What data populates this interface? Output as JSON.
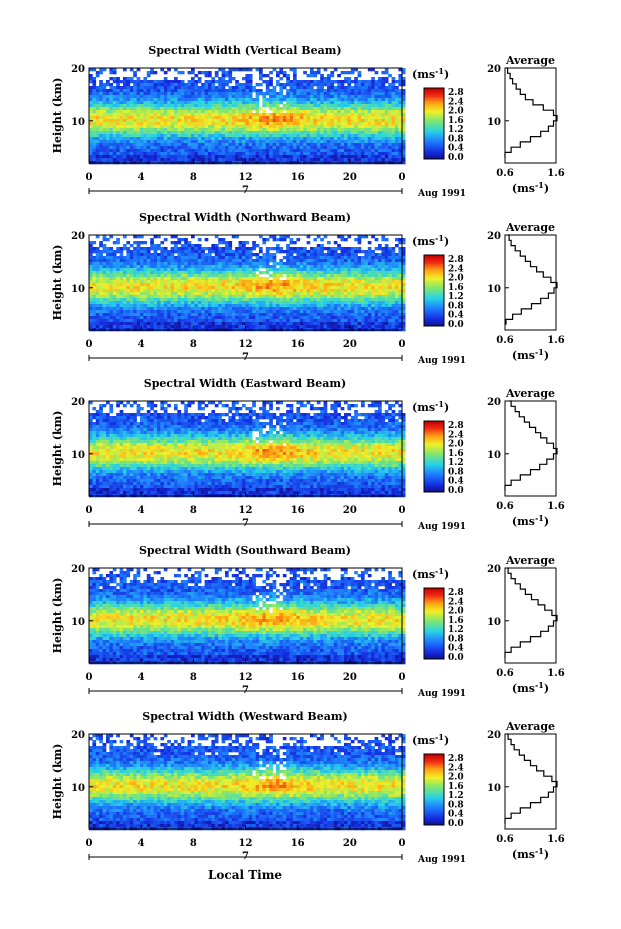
{
  "figure": {
    "x_axis_label": "Local Time",
    "colorbar_unit": "(ms",
    "colorbar_unit_exp": "-1",
    "colorbar_ticks": [
      "2.8",
      "2.4",
      "2.0",
      "1.6",
      "1.2",
      "0.8",
      "0.4",
      "0.0"
    ],
    "profile_title": "Average",
    "profile_unit": "(ms",
    "profile_unit_exp": "-1",
    "date_label": "Aug 1991",
    "day_marker": "7",
    "y_axis_label": "Height (km)"
  },
  "chart_data": [
    {
      "type": "heatmap",
      "title": "Spectral Width (Vertical Beam)",
      "xlabel": "",
      "ylabel": "Height (km)",
      "xlim": [
        0,
        24
      ],
      "ylim": [
        2,
        20
      ],
      "xticks": [
        "0",
        "4",
        "8",
        "12",
        "16",
        "20",
        "0"
      ],
      "yticks": [
        "20",
        "10"
      ],
      "colorbar": {
        "unit": "ms^-1",
        "range": [
          0.0,
          3.0
        ],
        "ticks": [
          0.0,
          0.4,
          0.8,
          1.2,
          1.6,
          2.0,
          2.4,
          2.8
        ]
      },
      "data_gap_hour": 18.9,
      "peak_height_km": 10.5,
      "peak_value": 2.6,
      "profile": {
        "xlim": [
          0.6,
          1.6
        ],
        "xticks": [
          "0.6",
          "1.6"
        ],
        "yticks": [
          "20",
          "10"
        ],
        "heights": [
          3,
          4,
          5,
          6,
          7,
          8,
          9,
          10,
          11,
          12,
          13,
          14,
          15,
          16,
          17,
          18,
          19,
          20
        ],
        "values": [
          0.6,
          0.72,
          0.9,
          1.1,
          1.3,
          1.45,
          1.55,
          1.62,
          1.55,
          1.35,
          1.15,
          1.0,
          0.9,
          0.82,
          0.75,
          0.7,
          0.65,
          0.62
        ]
      }
    },
    {
      "type": "heatmap",
      "title": "Spectral Width (Northward Beam)",
      "xlabel": "",
      "ylabel": "Height (km)",
      "xlim": [
        0,
        24
      ],
      "ylim": [
        2,
        20
      ],
      "xticks": [
        "0",
        "4",
        "8",
        "12",
        "16",
        "20",
        "0"
      ],
      "yticks": [
        "20",
        "10"
      ],
      "colorbar": {
        "unit": "ms^-1",
        "range": [
          0.0,
          3.0
        ],
        "ticks": [
          0.0,
          0.4,
          0.8,
          1.2,
          1.6,
          2.0,
          2.4,
          2.8
        ]
      },
      "data_gap_hour": 18.9,
      "peak_height_km": 10.5,
      "peak_value": 2.6,
      "profile": {
        "xlim": [
          0.6,
          1.6
        ],
        "xticks": [
          "0.6",
          "1.6"
        ],
        "yticks": [
          "20",
          "10"
        ],
        "heights": [
          3,
          4,
          5,
          6,
          7,
          8,
          9,
          10,
          11,
          12,
          13,
          14,
          15,
          16,
          17,
          18,
          19,
          20
        ],
        "values": [
          0.62,
          0.75,
          0.92,
          1.12,
          1.3,
          1.45,
          1.56,
          1.62,
          1.5,
          1.35,
          1.22,
          1.1,
          1.0,
          0.9,
          0.8,
          0.72,
          0.68,
          0.66
        ]
      }
    },
    {
      "type": "heatmap",
      "title": "Spectral Width (Eastward Beam)",
      "xlabel": "",
      "ylabel": "Height (km)",
      "xlim": [
        0,
        24
      ],
      "ylim": [
        2,
        20
      ],
      "xticks": [
        "0",
        "4",
        "8",
        "12",
        "16",
        "20",
        "0"
      ],
      "yticks": [
        "20",
        "10"
      ],
      "colorbar": {
        "unit": "ms^-1",
        "range": [
          0.0,
          3.0
        ],
        "ticks": [
          0.0,
          0.4,
          0.8,
          1.2,
          1.6,
          2.0,
          2.4,
          2.8
        ]
      },
      "data_gap_hour": 18.9,
      "peak_height_km": 10.5,
      "peak_value": 2.6,
      "profile": {
        "xlim": [
          0.6,
          1.6
        ],
        "xticks": [
          "0.6",
          "1.6"
        ],
        "yticks": [
          "20",
          "10"
        ],
        "heights": [
          3,
          4,
          5,
          6,
          7,
          8,
          9,
          10,
          11,
          12,
          13,
          14,
          15,
          16,
          17,
          18,
          19,
          20
        ],
        "values": [
          0.6,
          0.72,
          0.9,
          1.1,
          1.28,
          1.42,
          1.55,
          1.62,
          1.55,
          1.42,
          1.3,
          1.2,
          1.08,
          0.98,
          0.88,
          0.8,
          0.72,
          0.68
        ]
      }
    },
    {
      "type": "heatmap",
      "title": "Spectral Width (Southward Beam)",
      "xlabel": "",
      "ylabel": "Height (km)",
      "xlim": [
        0,
        24
      ],
      "ylim": [
        2,
        20
      ],
      "xticks": [
        "0",
        "4",
        "8",
        "12",
        "16",
        "20",
        "0"
      ],
      "yticks": [
        "20",
        "10"
      ],
      "colorbar": {
        "unit": "ms^-1",
        "range": [
          0.0,
          3.0
        ],
        "ticks": [
          0.0,
          0.4,
          0.8,
          1.2,
          1.6,
          2.0,
          2.4,
          2.8
        ]
      },
      "data_gap_hour": 18.9,
      "peak_height_km": 10.5,
      "peak_value": 2.6,
      "profile": {
        "xlim": [
          0.6,
          1.6
        ],
        "xticks": [
          "0.6",
          "1.6"
        ],
        "yticks": [
          "20",
          "10"
        ],
        "heights": [
          3,
          4,
          5,
          6,
          7,
          8,
          9,
          10,
          11,
          12,
          13,
          14,
          15,
          16,
          17,
          18,
          19,
          20
        ],
        "values": [
          0.6,
          0.72,
          0.9,
          1.1,
          1.3,
          1.45,
          1.55,
          1.62,
          1.52,
          1.38,
          1.25,
          1.12,
          1.0,
          0.9,
          0.8,
          0.72,
          0.66,
          0.64
        ]
      }
    },
    {
      "type": "heatmap",
      "title": "Spectral Width (Westward Beam)",
      "xlabel": "Local Time",
      "ylabel": "Height (km)",
      "xlim": [
        0,
        24
      ],
      "ylim": [
        2,
        20
      ],
      "xticks": [
        "0",
        "4",
        "8",
        "12",
        "16",
        "20",
        "0"
      ],
      "yticks": [
        "20",
        "10"
      ],
      "colorbar": {
        "unit": "ms^-1",
        "range": [
          0.0,
          3.0
        ],
        "ticks": [
          0.0,
          0.4,
          0.8,
          1.2,
          1.6,
          2.0,
          2.4,
          2.8
        ]
      },
      "data_gap_hour": 18.9,
      "peak_height_km": 10.5,
      "peak_value": 2.6,
      "profile": {
        "xlim": [
          0.6,
          1.6
        ],
        "xticks": [
          "0.6",
          "1.6"
        ],
        "yticks": [
          "20",
          "10"
        ],
        "heights": [
          3,
          4,
          5,
          6,
          7,
          8,
          9,
          10,
          11,
          12,
          13,
          14,
          15,
          16,
          17,
          18,
          19,
          20
        ],
        "values": [
          0.6,
          0.72,
          0.9,
          1.1,
          1.3,
          1.45,
          1.55,
          1.62,
          1.52,
          1.36,
          1.22,
          1.1,
          0.98,
          0.88,
          0.78,
          0.72,
          0.66,
          0.64
        ]
      }
    }
  ]
}
